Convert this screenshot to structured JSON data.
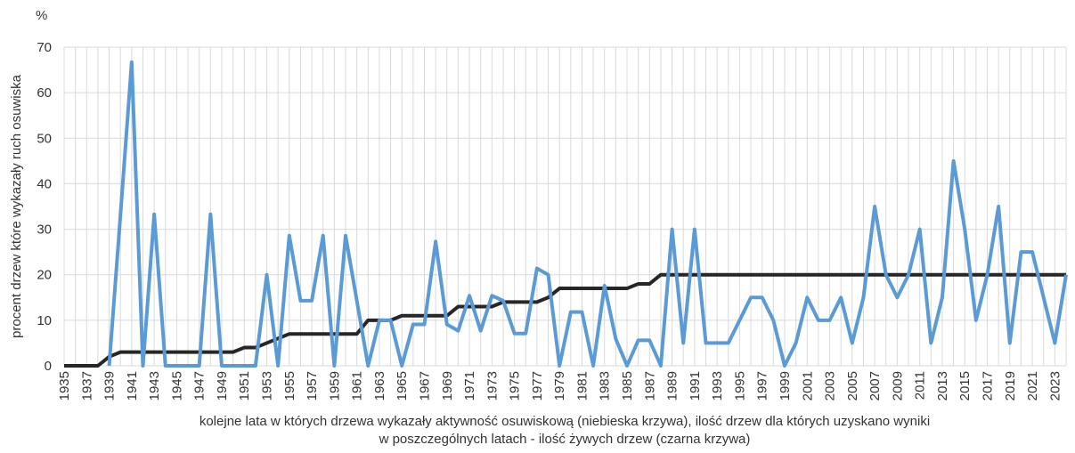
{
  "chart_data": {
    "type": "line",
    "y_unit": "%",
    "ylabel": "procent drzew które wykazały ruch osuwiska",
    "xlabel": [
      "kolejne lata w których drzewa wykazały aktywność osuwiskową (niebieska krzywa), ilość drzew dla których uzyskano wyniki",
      "w poszczególnych latach - ilość żywych drzew (czarna krzywa)"
    ],
    "categories": [
      "1935",
      null,
      "1937",
      null,
      "1939",
      null,
      "1941",
      null,
      "1943",
      null,
      "1945",
      null,
      "1947",
      null,
      "1949",
      null,
      "1951",
      null,
      "1953",
      null,
      "1955",
      null,
      "1957",
      null,
      "1959",
      null,
      "1961",
      null,
      "1963",
      null,
      "1965",
      null,
      "1967",
      null,
      "1969",
      null,
      "1971",
      null,
      "1973",
      null,
      "1975",
      null,
      "1977",
      null,
      "1979",
      null,
      "1981",
      null,
      "1983",
      null,
      "1985",
      null,
      "1987",
      null,
      "1989",
      null,
      "1991",
      null,
      "1993",
      null,
      "1995",
      null,
      "1997",
      null,
      "1999",
      null,
      "2001",
      null,
      "2003",
      null,
      "2005",
      null,
      "2007",
      null,
      "2009",
      null,
      "2011",
      null,
      "2013",
      null,
      "2015",
      null,
      "2017",
      null,
      "2019",
      null,
      "2021",
      null,
      "2023",
      null
    ],
    "series": [
      {
        "color": "#262626",
        "values": [
          0,
          0,
          0,
          0,
          2,
          3,
          3,
          3,
          3,
          3,
          3,
          3,
          3,
          3,
          3,
          3,
          4,
          4,
          5,
          6,
          7,
          7,
          7,
          7,
          7,
          7,
          7,
          10,
          10,
          10,
          11,
          11,
          11,
          11,
          11,
          13,
          13,
          13,
          13,
          14,
          14,
          14,
          14,
          15,
          17,
          17,
          17,
          17,
          17,
          17,
          17,
          18,
          18,
          20,
          20,
          20,
          20,
          20,
          20,
          20,
          20,
          20,
          20,
          20,
          20,
          20,
          20,
          20,
          20,
          20,
          20,
          20,
          20,
          20,
          20,
          20,
          20,
          20,
          20,
          20,
          20,
          20,
          20,
          20,
          20,
          20,
          20,
          20,
          20,
          20
        ]
      },
      {
        "color": "#5b9bd5",
        "values": [
          null,
          null,
          null,
          null,
          0,
          33,
          66.7,
          0,
          33.3,
          0,
          0,
          0,
          0,
          33.3,
          0,
          0,
          0,
          0,
          20,
          0,
          28.6,
          14.3,
          14.3,
          28.6,
          0,
          28.6,
          14.3,
          0,
          10,
          10,
          0,
          9.1,
          9.1,
          27.3,
          9.1,
          7.7,
          15.4,
          7.7,
          15.4,
          14.3,
          7.1,
          7.1,
          21.4,
          20,
          0,
          11.8,
          11.8,
          0,
          17.6,
          5.9,
          0,
          5.6,
          5.6,
          0,
          30,
          5,
          30,
          5,
          5,
          5,
          10,
          15,
          15,
          10,
          0,
          5,
          15,
          10,
          10,
          15,
          5,
          15,
          35,
          20,
          15,
          20,
          30,
          5,
          15,
          45,
          30,
          10,
          20,
          35,
          5,
          25,
          25,
          15,
          5,
          20
        ]
      }
    ],
    "ylim": [
      0,
      70
    ],
    "yticks": [
      0,
      10,
      20,
      30,
      40,
      50,
      60,
      70
    ],
    "grid": true
  }
}
